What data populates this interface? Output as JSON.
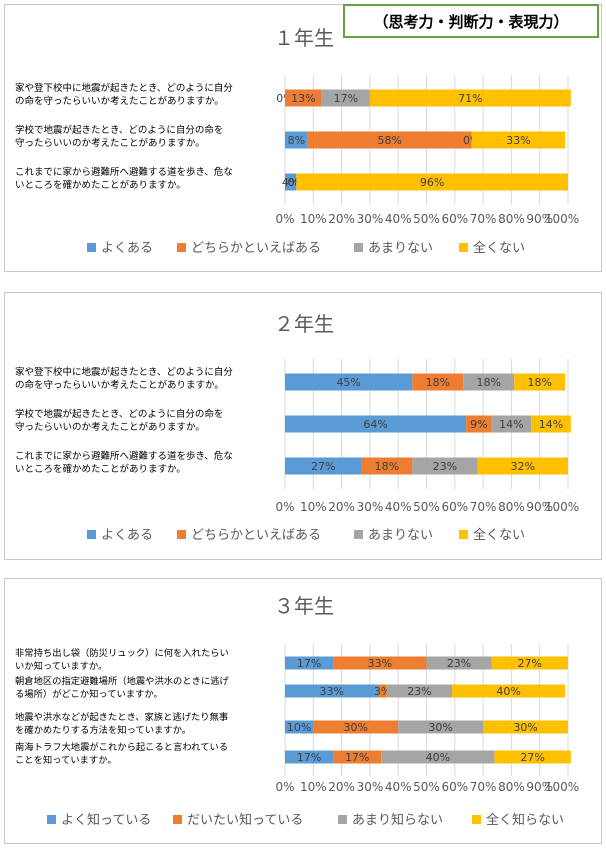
{
  "badge": "（思考力・判断力・表現力）",
  "colors": {
    "c1": "#5b9bd5",
    "c2": "#ed7d31",
    "c3": "#a5a5a5",
    "c4": "#ffc000",
    "label": "#404040",
    "grid": "#d9d9d9"
  },
  "chart_data": [
    {
      "type": "bar",
      "orientation": "horizontal-stacked-100",
      "title": "１年生",
      "categories": [
        "家や登下校中に地震が起きたとき、どのように自分の命を守ったらいいか考えたことがありますか。",
        "学校で地震が起きたとき、どのように自分の命を守ったらいいのか考えたことがありますか。",
        "これまでに家から避難所へ避難する道を歩き、危ないところを確かめたことがありますか。"
      ],
      "category_lines": [
        [
          "家や登下校中に地震が起きたとき、どのように自分",
          "の命を守ったらいいか考えたことがありますか。"
        ],
        [
          "学校で地震が起きたとき、どのように自分の命を",
          "守ったらいいのか考えたことがありますか。"
        ],
        [
          "これまでに家から避難所へ避難する道を歩き、危な",
          "いところを確かめたことがありますか。"
        ]
      ],
      "series": [
        {
          "name": "よくある",
          "values": [
            0,
            8,
            4
          ]
        },
        {
          "name": "どちらかといえばある",
          "values": [
            13,
            58,
            0
          ]
        },
        {
          "name": "あまりない",
          "values": [
            17,
            0,
            0
          ]
        },
        {
          "name": "全くない",
          "values": [
            71,
            33,
            96
          ]
        }
      ],
      "x_ticks": [
        "0%",
        "10%",
        "20%",
        "30%",
        "40%",
        "50%",
        "60%",
        "70%",
        "80%",
        "90%",
        "100%"
      ],
      "xlim": [
        0,
        100
      ],
      "legend": "bottom"
    },
    {
      "type": "bar",
      "orientation": "horizontal-stacked-100",
      "title": "２年生",
      "categories": [
        "家や登下校中に地震が起きたとき、どのように自分の命を守ったらいいか考えたことがありますか。",
        "学校で地震が起きたとき、どのように自分の命を守ったらいいのか考えたことがありますか。",
        "これまでに家から避難所へ避難する道を歩き、危ないところを確かめたことがありますか。"
      ],
      "category_lines": [
        [
          "家や登下校中に地震が起きたとき、どのように自分",
          "の命を守ったらいいか考えたことがありますか。"
        ],
        [
          "学校で地震が起きたとき、どのように自分の命を",
          "守ったらいいのか考えたことがありますか。"
        ],
        [
          "これまでに家から避難所へ避難する道を歩き、危な",
          "いところを確かめたことがありますか。"
        ]
      ],
      "series": [
        {
          "name": "よくある",
          "values": [
            45,
            64,
            27
          ]
        },
        {
          "name": "どちらかといえばある",
          "values": [
            18,
            9,
            18
          ]
        },
        {
          "name": "あまりない",
          "values": [
            18,
            14,
            23
          ]
        },
        {
          "name": "全くない",
          "values": [
            18,
            14,
            32
          ]
        }
      ],
      "x_ticks": [
        "0%",
        "10%",
        "20%",
        "30%",
        "40%",
        "50%",
        "60%",
        "70%",
        "80%",
        "90%",
        "100%"
      ],
      "xlim": [
        0,
        100
      ],
      "legend": "bottom"
    },
    {
      "type": "bar",
      "orientation": "horizontal-stacked-100",
      "title": "３年生",
      "categories": [
        "非常持ち出し袋（防災リュック）に何を入れたらいいか知っていますか。",
        "朝倉地区の指定避難場所（地震や洪水のときに逃げる場所）がどこか知っていますか。",
        "地震や洪水などが起きたとき、家族と逃げたり無事を確かめたりする方法を知っていますか。",
        "南海トラフ大地震がこれから起こると言われていることを知っていますか。"
      ],
      "category_lines": [
        [
          "非常持ち出し袋（防災リュック）に何を入れたらい",
          "いか知っていますか。"
        ],
        [
          "朝倉地区の指定避難場所（地震や洪水のときに逃げ",
          "る場所）がどこか知っていますか。"
        ],
        [
          "地震や洪水などが起きたとき、家族と逃げたり無事",
          "を確かめたりする方法を知っていますか。"
        ],
        [
          "南海トラフ大地震がこれから起こると言われている",
          "ことを知っていますか。"
        ]
      ],
      "series": [
        {
          "name": "よく知っている",
          "values": [
            17,
            33,
            10,
            17
          ]
        },
        {
          "name": "だいたい知っている",
          "values": [
            33,
            3,
            30,
            17
          ]
        },
        {
          "name": "あまり知らない",
          "values": [
            23,
            23,
            30,
            40
          ]
        },
        {
          "name": "全く知らない",
          "values": [
            27,
            40,
            30,
            27
          ]
        }
      ],
      "x_ticks": [
        "0%",
        "10%",
        "20%",
        "30%",
        "40%",
        "50%",
        "60%",
        "70%",
        "80%",
        "90%",
        "100%"
      ],
      "xlim": [
        0,
        100
      ],
      "legend": "bottom"
    }
  ]
}
